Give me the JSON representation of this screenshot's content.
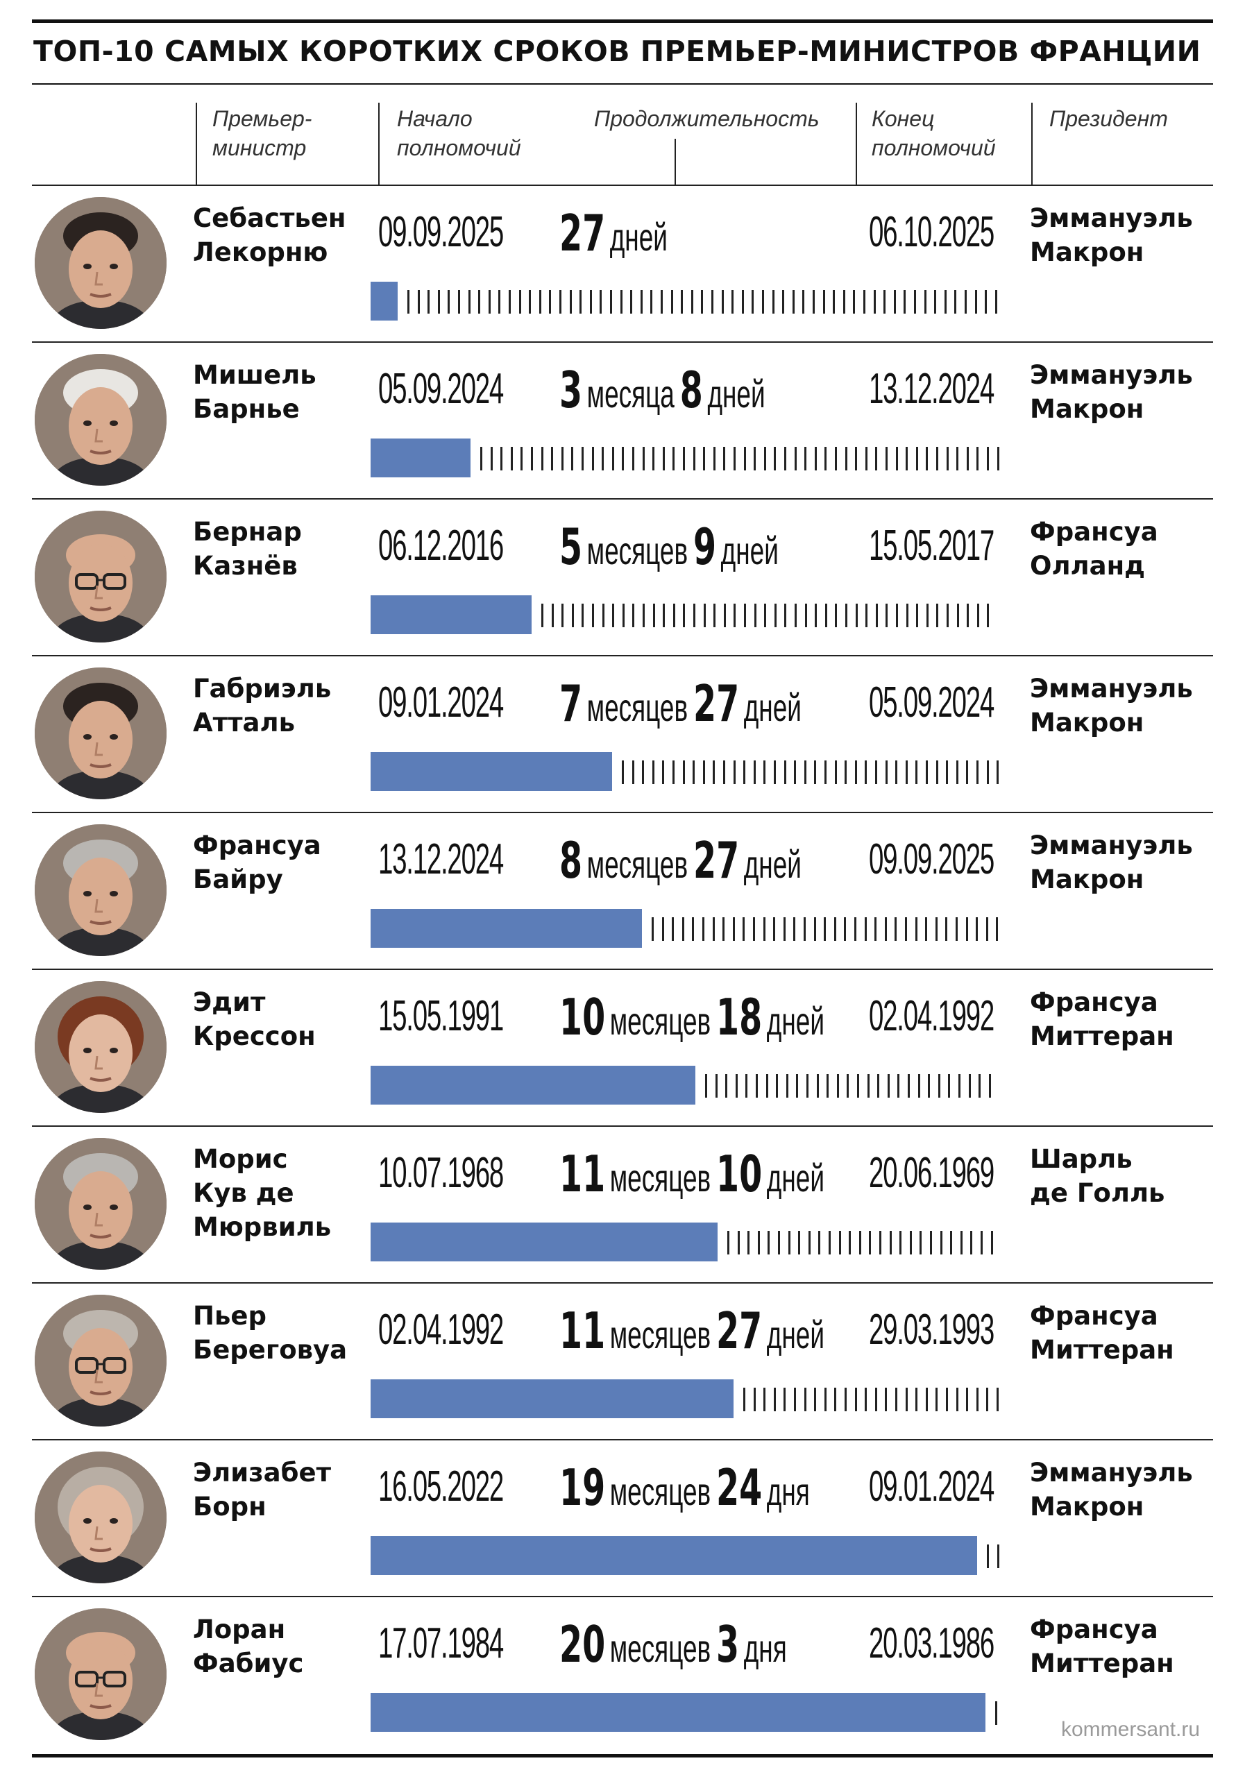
{
  "title": "ТОП-10 САМЫХ КОРОТКИХ СРОКОВ ПРЕМЬЕР-МИНИСТРОВ ФРАНЦИИ",
  "headers": {
    "pm": [
      "Премьер-",
      "министр"
    ],
    "start": [
      "Начало",
      "полномочий"
    ],
    "duration": "Продолжительность",
    "end": [
      "Конец",
      "полномочий"
    ],
    "president": "Президент"
  },
  "watermark": "kommersant.ru",
  "colors": {
    "bar": "#5c7db8",
    "rule": "#111111"
  },
  "chart_data": {
    "type": "bar",
    "title": "ТОП-10 САМЫХ КОРОТКИХ СРОКОВ ПРЕМЬЕР-МИНИСТРОВ ФРАНЦИИ",
    "value_unit": "дней",
    "xlim": [
      0,
      625
    ],
    "rows": [
      {
        "pm": [
          "Себастьен",
          "Лекорню"
        ],
        "start": "09.09.2025",
        "end": "06.10.2025",
        "duration": [
          [
            "27",
            "дней"
          ]
        ],
        "days": 27,
        "president": [
          "Эммануэль",
          "Макрон"
        ],
        "face": "dark-hair-man"
      },
      {
        "pm": [
          "Мишель",
          "Барнье"
        ],
        "start": "05.09.2024",
        "end": "13.12.2024",
        "duration": [
          [
            "3",
            "месяца"
          ],
          [
            "8",
            "дней"
          ]
        ],
        "days": 99,
        "president": [
          "Эммануэль",
          "Макрон"
        ],
        "face": "white-hair-man"
      },
      {
        "pm": [
          "Бернар",
          "Казнёв"
        ],
        "start": "06.12.2016",
        "end": "15.05.2017",
        "duration": [
          [
            "5",
            "месяцев"
          ],
          [
            "9",
            "дней"
          ]
        ],
        "days": 160,
        "president": [
          "Франсуа",
          "Олланд"
        ],
        "face": "bald-glasses-man"
      },
      {
        "pm": [
          "Габриэль",
          "Атталь"
        ],
        "start": "09.01.2024",
        "end": "05.09.2024",
        "duration": [
          [
            "7",
            "месяцев"
          ],
          [
            "27",
            "дней"
          ]
        ],
        "days": 240,
        "president": [
          "Эммануэль",
          "Макрон"
        ],
        "face": "dark-hair-man"
      },
      {
        "pm": [
          "Франсуа",
          "Байру"
        ],
        "start": "13.12.2024",
        "end": "09.09.2025",
        "duration": [
          [
            "8",
            "месяцев"
          ],
          [
            "27",
            "дней"
          ]
        ],
        "days": 270,
        "president": [
          "Эммануэль",
          "Макрон"
        ],
        "face": "grey-hair-man"
      },
      {
        "pm": [
          "Эдит",
          "Крессон"
        ],
        "start": "15.05.1991",
        "end": "02.04.1992",
        "duration": [
          [
            "10",
            "месяцев"
          ],
          [
            "18",
            "дней"
          ]
        ],
        "days": 323,
        "president": [
          "Франсуа",
          "Миттеран"
        ],
        "face": "woman-auburn"
      },
      {
        "pm": [
          "Морис",
          "Кув де",
          "Мюрвиль"
        ],
        "start": "10.07.1968",
        "end": "20.06.1969",
        "duration": [
          [
            "11",
            "месяцев"
          ],
          [
            "10",
            "дней"
          ]
        ],
        "days": 345,
        "president": [
          "Шарль",
          "де Голль"
        ],
        "face": "grey-hair-man"
      },
      {
        "pm": [
          "Пьер",
          "Береговуа"
        ],
        "start": "02.04.1992",
        "end": "29.03.1993",
        "duration": [
          [
            "11",
            "месяцев"
          ],
          [
            "27",
            "дней"
          ]
        ],
        "days": 361,
        "president": [
          "Франсуа",
          "Миттеран"
        ],
        "face": "glasses-man"
      },
      {
        "pm": [
          "Элизабет",
          "Борн"
        ],
        "start": "16.05.2022",
        "end": "09.01.2024",
        "duration": [
          [
            "19",
            "месяцев"
          ],
          [
            "24",
            "дня"
          ]
        ],
        "days": 603,
        "president": [
          "Эммануэль",
          "Макрон"
        ],
        "face": "woman-grey"
      },
      {
        "pm": [
          "Лоран",
          "Фабиус"
        ],
        "start": "17.07.1984",
        "end": "20.03.1986",
        "duration": [
          [
            "20",
            "месяцев"
          ],
          [
            "3",
            "дня"
          ]
        ],
        "days": 611,
        "president": [
          "Франсуа",
          "Миттеран"
        ],
        "face": "bald-glasses-man"
      }
    ]
  }
}
